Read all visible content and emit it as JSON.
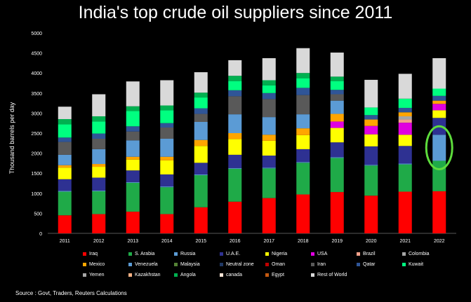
{
  "chart_data": {
    "type": "bar",
    "stacked": true,
    "title": "India's top crude oil suppliers since 2011",
    "ylabel": "Thousand barrels per day",
    "xlabel": "",
    "ylim": [
      0,
      5000
    ],
    "yticks": [
      0,
      500,
      1000,
      1500,
      2000,
      2500,
      3000,
      3500,
      4000,
      4500,
      5000
    ],
    "categories": [
      "2011",
      "2012",
      "2013",
      "2014",
      "2015",
      "2016",
      "2017",
      "2018",
      "2019",
      "2020",
      "2021",
      "2022"
    ],
    "grid": false,
    "legend_position": "bottom",
    "highlight": {
      "category": "2022",
      "series": "Russia",
      "color": "#5ddc3c"
    },
    "series": [
      {
        "name": "Iraq",
        "color": "#ff0000",
        "values": [
          450,
          480,
          540,
          480,
          650,
          790,
          880,
          970,
          1030,
          940,
          1040,
          1050
        ]
      },
      {
        "name": "S. Arabia",
        "color": "#1faa48",
        "values": [
          590,
          570,
          720,
          670,
          800,
          820,
          740,
          790,
          850,
          750,
          680,
          760
        ]
      },
      {
        "name": "Russia",
        "color": "#5b9bd5",
        "values": [
          20,
          20,
          20,
          20,
          20,
          20,
          20,
          20,
          20,
          20,
          20,
          650
        ]
      },
      {
        "name": "U.A.E.",
        "color": "#2e3192",
        "values": [
          290,
          320,
          290,
          300,
          290,
          330,
          300,
          320,
          370,
          460,
          440,
          420
        ]
      },
      {
        "name": "Nigeria",
        "color": "#ffff00",
        "values": [
          290,
          270,
          270,
          350,
          420,
          390,
          370,
          350,
          360,
          300,
          280,
          190
        ]
      },
      {
        "name": "USA",
        "color": "#e000e0",
        "values": [
          0,
          0,
          0,
          0,
          0,
          0,
          0,
          0,
          160,
          210,
          300,
          160
        ]
      },
      {
        "name": "Brazil",
        "color": "#f4a18a",
        "values": [
          0,
          0,
          0,
          0,
          0,
          0,
          0,
          0,
          0,
          0,
          80,
          0
        ]
      },
      {
        "name": "Colombia",
        "color": "#a5a5a5",
        "values": [
          0,
          0,
          0,
          0,
          0,
          0,
          0,
          0,
          0,
          0,
          80,
          0
        ]
      },
      {
        "name": "Mexico",
        "color": "#ffa500",
        "values": [
          60,
          70,
          70,
          90,
          150,
          150,
          150,
          170,
          190,
          160,
          100,
          80
        ]
      },
      {
        "name": "Venezuela",
        "color": "#5b9bd5",
        "values": [
          260,
          370,
          410,
          450,
          450,
          470,
          440,
          350,
          330,
          0,
          0,
          0
        ]
      },
      {
        "name": "Malaysia",
        "color": "#548235",
        "values": [
          0,
          0,
          0,
          0,
          0,
          0,
          0,
          0,
          0,
          0,
          0,
          0
        ]
      },
      {
        "name": "Neutral zone",
        "color": "#203864",
        "values": [
          0,
          0,
          0,
          0,
          0,
          0,
          0,
          0,
          0,
          0,
          0,
          0
        ]
      },
      {
        "name": "Oman",
        "color": "#c00000",
        "values": [
          0,
          0,
          0,
          0,
          0,
          0,
          0,
          0,
          0,
          0,
          0,
          0
        ]
      },
      {
        "name": "Iran",
        "color": "#595959",
        "values": [
          320,
          260,
          220,
          280,
          200,
          450,
          450,
          480,
          160,
          0,
          0,
          0
        ]
      },
      {
        "name": "Qatar",
        "color": "#2f5597",
        "values": [
          110,
          130,
          130,
          110,
          140,
          150,
          150,
          180,
          110,
          110,
          110,
          120
        ]
      },
      {
        "name": "Kuwait",
        "color": "#00ff80",
        "values": [
          330,
          300,
          380,
          320,
          270,
          230,
          190,
          240,
          220,
          190,
          230,
          180
        ]
      },
      {
        "name": "Yemen",
        "color": "#a5a5a5",
        "values": [
          0,
          0,
          0,
          0,
          0,
          0,
          0,
          0,
          0,
          0,
          0,
          0
        ]
      },
      {
        "name": "Kazakhstan",
        "color": "#f4b183",
        "values": [
          0,
          0,
          0,
          0,
          0,
          0,
          0,
          0,
          0,
          0,
          0,
          0
        ]
      },
      {
        "name": "Angola",
        "color": "#00b050",
        "values": [
          130,
          130,
          120,
          120,
          120,
          130,
          130,
          130,
          110,
          0,
          0,
          0
        ]
      },
      {
        "name": "canada",
        "color": "#fbe5d6",
        "values": [
          0,
          0,
          0,
          0,
          0,
          0,
          0,
          0,
          0,
          0,
          0,
          0
        ]
      },
      {
        "name": "Egypt",
        "color": "#c55a11",
        "values": [
          0,
          0,
          0,
          0,
          0,
          0,
          0,
          0,
          0,
          0,
          0,
          0
        ]
      },
      {
        "name": "Rest of World",
        "color": "#d9d9d9",
        "values": [
          310,
          550,
          620,
          630,
          510,
          390,
          550,
          620,
          600,
          690,
          620,
          760
        ]
      }
    ]
  },
  "footer": {
    "source": "Source : Govt, Traders, Reuters Calculations"
  }
}
